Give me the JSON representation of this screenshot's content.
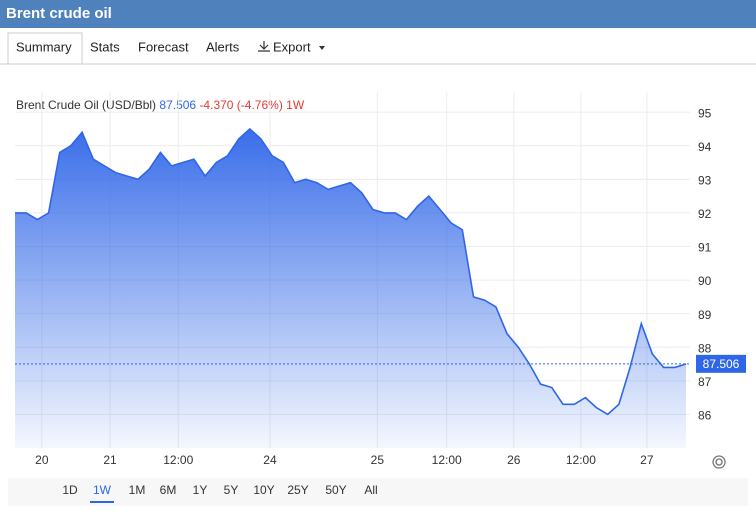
{
  "header": {
    "title": "Brent crude oil"
  },
  "tabs": [
    "Summary",
    "Stats",
    "Forecast",
    "Alerts",
    "Export"
  ],
  "ranges": [
    "1D",
    "1W",
    "1M",
    "6M",
    "1Y",
    "5Y",
    "10Y",
    "25Y",
    "50Y",
    "All"
  ],
  "range_selected": 1,
  "chart_data": {
    "type": "area",
    "title": "Brent Crude Oil (USD/Bbl)",
    "last_value": 87.506,
    "change": "-4.370 (-4.76%)",
    "period": "1W",
    "color": "#2f66e8",
    "x": [
      0,
      1,
      2,
      3,
      4,
      5,
      6,
      7,
      8,
      9,
      10,
      11,
      12,
      13,
      14,
      15,
      16,
      17,
      18,
      19,
      20,
      21,
      22,
      23,
      24,
      25,
      26,
      27,
      28,
      29,
      30,
      31,
      32,
      33,
      34,
      35,
      36,
      37,
      38,
      39,
      40,
      41,
      42,
      43,
      44,
      45,
      46,
      47,
      48,
      49,
      50,
      51,
      52,
      53,
      54,
      55,
      56,
      57,
      58,
      59,
      60
    ],
    "values": [
      92.0,
      92.0,
      91.8,
      92.0,
      93.8,
      94.0,
      94.4,
      93.6,
      93.4,
      93.2,
      93.1,
      93.0,
      93.3,
      93.8,
      93.4,
      93.5,
      93.6,
      93.1,
      93.5,
      93.7,
      94.2,
      94.5,
      94.2,
      93.7,
      93.5,
      92.9,
      93.0,
      92.9,
      92.7,
      92.8,
      92.9,
      92.6,
      92.1,
      92.0,
      92.0,
      91.8,
      92.2,
      92.5,
      92.1,
      91.7,
      91.5,
      89.5,
      89.4,
      89.2,
      88.4,
      88.0,
      87.5,
      86.9,
      86.8,
      86.3,
      86.3,
      86.5,
      86.2,
      86.0,
      86.3,
      87.4,
      88.7,
      87.8,
      87.4,
      87.4,
      87.5
    ],
    "xlim": [
      0,
      60
    ],
    "xticks": [
      {
        "value": 2.4,
        "label": "20"
      },
      {
        "value": 8.5,
        "label": "21"
      },
      {
        "value": 14.6,
        "label": "12:00"
      },
      {
        "value": 22.8,
        "label": "24"
      },
      {
        "value": 32.4,
        "label": "25"
      },
      {
        "value": 38.6,
        "label": "12:00"
      },
      {
        "value": 44.6,
        "label": "26"
      },
      {
        "value": 50.6,
        "label": "12:00"
      },
      {
        "value": 56.5,
        "label": "27"
      }
    ],
    "ylim": [
      85,
      95.6
    ],
    "yticks": [
      86,
      87,
      88,
      89,
      90,
      91,
      92,
      93,
      94,
      95
    ],
    "grid": true
  }
}
